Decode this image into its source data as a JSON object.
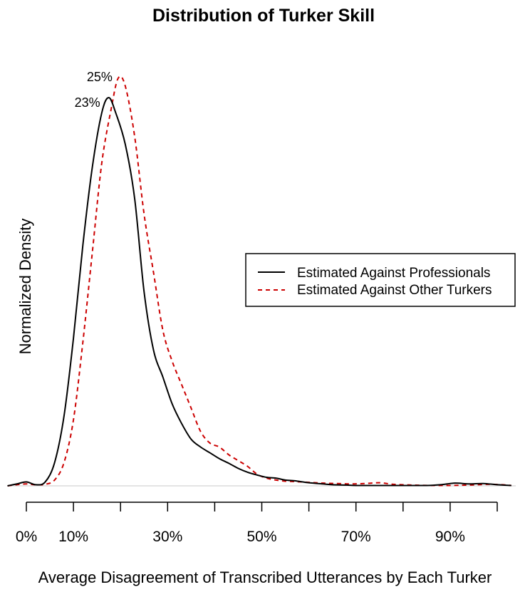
{
  "chart_data": {
    "type": "line",
    "title": "Distribution of Turker Skill",
    "xlabel": "Average Disagreement of Transcribed Utterances by Each Turker",
    "ylabel": "Normalized Density",
    "xlim": [
      -0.02,
      1.05
    ],
    "ylim": [
      0,
      1.05
    ],
    "x_ticks": [
      0,
      0.1,
      0.2,
      0.3,
      0.4,
      0.5,
      0.6,
      0.7,
      0.8,
      0.9,
      1.0
    ],
    "x_tick_labels": [
      {
        "value": 0,
        "label": "0%"
      },
      {
        "value": 0.1,
        "label": "10%"
      },
      {
        "value": 0.3,
        "label": "30%"
      },
      {
        "value": 0.5,
        "label": "50%"
      },
      {
        "value": 0.7,
        "label": "70%"
      },
      {
        "value": 0.9,
        "label": "90%"
      }
    ],
    "legend": {
      "placement": "right",
      "entries": [
        {
          "label": "Estimated Against Professionals",
          "style": "solid",
          "color": "#000000"
        },
        {
          "label": "Estimated Against Other Turkers",
          "style": "dashed",
          "color": "#cc0000"
        }
      ]
    },
    "annotations": [
      {
        "text": "25%",
        "series": 1
      },
      {
        "text": "23%",
        "series": 0
      }
    ],
    "series": [
      {
        "name": "Estimated Against Professionals",
        "color": "#000000",
        "dash": "solid",
        "points": [
          [
            -0.04,
            0.0
          ],
          [
            -0.02,
            0.005
          ],
          [
            0.0,
            0.01
          ],
          [
            0.02,
            0.003
          ],
          [
            0.04,
            0.01
          ],
          [
            0.06,
            0.06
          ],
          [
            0.08,
            0.18
          ],
          [
            0.1,
            0.38
          ],
          [
            0.12,
            0.62
          ],
          [
            0.14,
            0.82
          ],
          [
            0.16,
            0.96
          ],
          [
            0.175,
            1.0
          ],
          [
            0.19,
            0.96
          ],
          [
            0.21,
            0.88
          ],
          [
            0.23,
            0.74
          ],
          [
            0.25,
            0.5
          ],
          [
            0.27,
            0.35
          ],
          [
            0.29,
            0.28
          ],
          [
            0.31,
            0.21
          ],
          [
            0.33,
            0.16
          ],
          [
            0.35,
            0.12
          ],
          [
            0.37,
            0.1
          ],
          [
            0.39,
            0.085
          ],
          [
            0.41,
            0.07
          ],
          [
            0.43,
            0.058
          ],
          [
            0.45,
            0.045
          ],
          [
            0.47,
            0.035
          ],
          [
            0.49,
            0.028
          ],
          [
            0.51,
            0.022
          ],
          [
            0.53,
            0.02
          ],
          [
            0.55,
            0.015
          ],
          [
            0.57,
            0.013
          ],
          [
            0.6,
            0.008
          ],
          [
            0.63,
            0.005
          ],
          [
            0.65,
            0.003
          ],
          [
            0.68,
            0.002
          ],
          [
            0.7,
            0.001
          ],
          [
            0.75,
            0.001
          ],
          [
            0.8,
            0.001
          ],
          [
            0.85,
            0.001
          ],
          [
            0.88,
            0.003
          ],
          [
            0.91,
            0.007
          ],
          [
            0.94,
            0.005
          ],
          [
            0.97,
            0.006
          ],
          [
            1.0,
            0.003
          ],
          [
            1.03,
            0.001
          ]
        ]
      },
      {
        "name": "Estimated Against Other Turkers",
        "color": "#cc0000",
        "dash": "dashed",
        "points": [
          [
            -0.04,
            0.0
          ],
          [
            -0.02,
            0.003
          ],
          [
            0.0,
            0.005
          ],
          [
            0.02,
            0.003
          ],
          [
            0.04,
            0.004
          ],
          [
            0.06,
            0.015
          ],
          [
            0.08,
            0.06
          ],
          [
            0.1,
            0.17
          ],
          [
            0.12,
            0.37
          ],
          [
            0.14,
            0.6
          ],
          [
            0.16,
            0.83
          ],
          [
            0.18,
            0.97
          ],
          [
            0.195,
            1.05
          ],
          [
            0.21,
            1.03
          ],
          [
            0.23,
            0.9
          ],
          [
            0.25,
            0.7
          ],
          [
            0.27,
            0.55
          ],
          [
            0.29,
            0.4
          ],
          [
            0.31,
            0.32
          ],
          [
            0.33,
            0.26
          ],
          [
            0.35,
            0.2
          ],
          [
            0.37,
            0.14
          ],
          [
            0.39,
            0.11
          ],
          [
            0.41,
            0.1
          ],
          [
            0.43,
            0.08
          ],
          [
            0.45,
            0.065
          ],
          [
            0.47,
            0.05
          ],
          [
            0.49,
            0.03
          ],
          [
            0.51,
            0.02
          ],
          [
            0.53,
            0.015
          ],
          [
            0.55,
            0.012
          ],
          [
            0.57,
            0.011
          ],
          [
            0.6,
            0.009
          ],
          [
            0.63,
            0.007
          ],
          [
            0.66,
            0.006
          ],
          [
            0.69,
            0.005
          ],
          [
            0.72,
            0.006
          ],
          [
            0.75,
            0.008
          ],
          [
            0.78,
            0.004
          ],
          [
            0.82,
            0.002
          ],
          [
            0.86,
            0.001
          ],
          [
            0.9,
            0.001
          ],
          [
            0.94,
            0.002
          ],
          [
            0.98,
            0.004
          ],
          [
            1.01,
            0.003
          ],
          [
            1.03,
            0.001
          ]
        ]
      }
    ]
  }
}
